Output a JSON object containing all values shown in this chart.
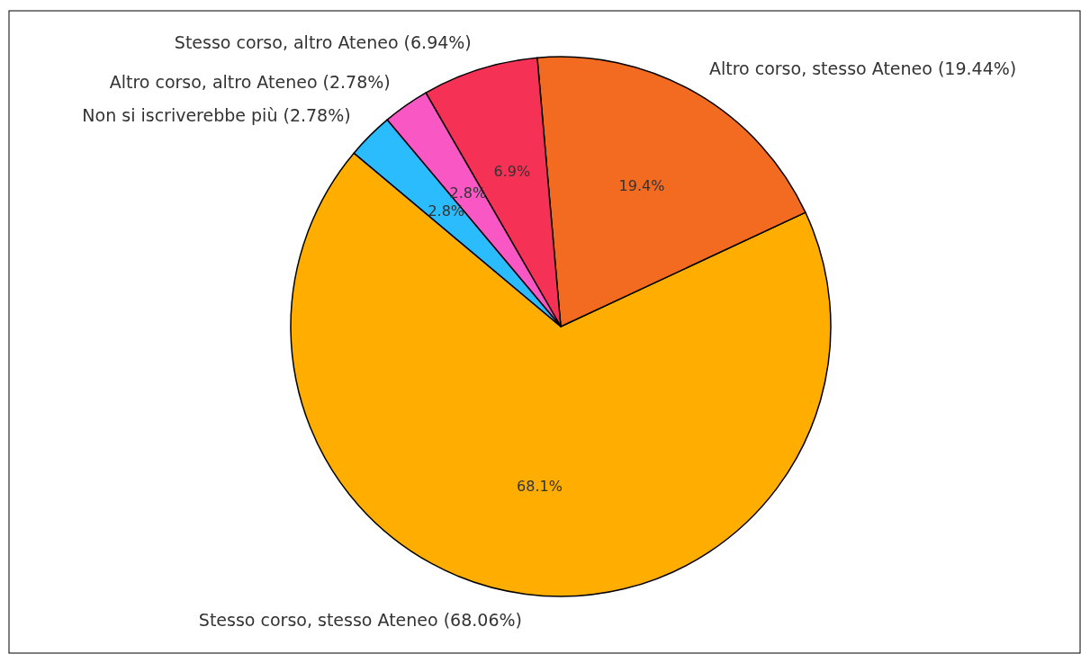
{
  "chart_data": {
    "type": "pie",
    "categories": [
      "Stesso corso, stesso Ateneo (68.06%)",
      "Altro corso, stesso Ateneo (19.44%)",
      "Stesso corso, altro Ateneo (6.94%)",
      "Altro corso, altro Ateneo (2.78%)",
      "Non si iscriverebbe più (2.78%)"
    ],
    "values": [
      68.06,
      19.44,
      6.94,
      2.78,
      2.78
    ],
    "colors": [
      "#ffae00",
      "#f26b21",
      "#f53256",
      "#f957c3",
      "#2bbcfd"
    ],
    "value_labels": [
      "68.1%",
      "19.4%",
      "6.9%",
      "2.8%",
      "2.8%"
    ]
  }
}
